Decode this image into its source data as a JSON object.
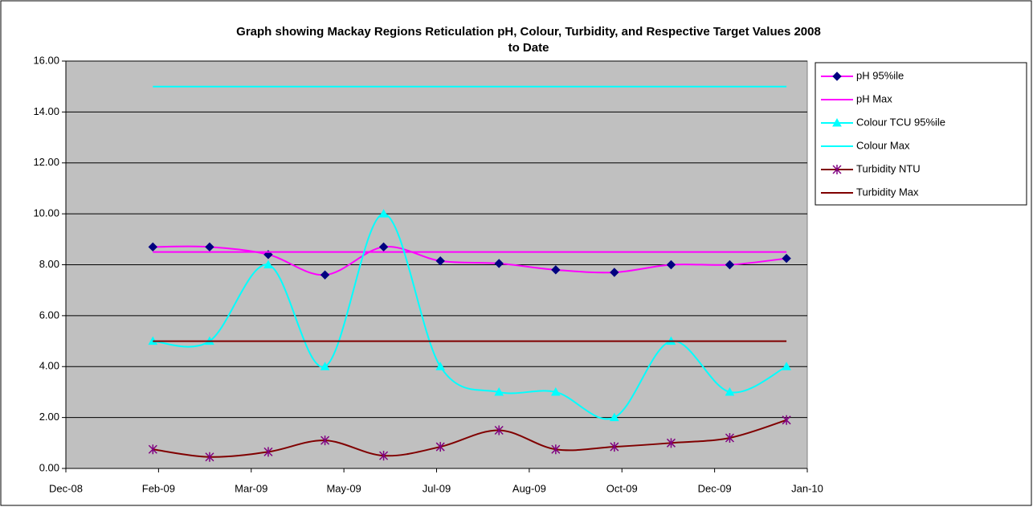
{
  "chart_data": {
    "type": "line",
    "title": "Graph showing Mackay Regions Reticulation pH, Colour, Turbidity, and Respective Target Values 2008 to Date",
    "x": [
      46,
      76,
      107,
      137,
      168,
      198,
      229,
      259,
      290,
      320,
      351,
      381
    ],
    "xlim": [
      0,
      392
    ],
    "xticks": [
      {
        "value": 0,
        "label": "Dec-08"
      },
      {
        "value": 49,
        "label": "Feb-09"
      },
      {
        "value": 98,
        "label": "Mar-09"
      },
      {
        "value": 147,
        "label": "May-09"
      },
      {
        "value": 196,
        "label": "Jul-09"
      },
      {
        "value": 245,
        "label": "Aug-09"
      },
      {
        "value": 294,
        "label": "Oct-09"
      },
      {
        "value": 343,
        "label": "Dec-09"
      },
      {
        "value": 392,
        "label": "Jan-10"
      }
    ],
    "ylim": [
      0,
      16
    ],
    "yticks": [
      {
        "value": 0,
        "label": "0.00"
      },
      {
        "value": 2,
        "label": "2.00"
      },
      {
        "value": 4,
        "label": "4.00"
      },
      {
        "value": 6,
        "label": "6.00"
      },
      {
        "value": 8,
        "label": "8.00"
      },
      {
        "value": 10,
        "label": "10.00"
      },
      {
        "value": 12,
        "label": "12.00"
      },
      {
        "value": 14,
        "label": "14.00"
      },
      {
        "value": 16,
        "label": "16.00"
      }
    ],
    "grid": true,
    "smooth": true,
    "legend": "right",
    "series": [
      {
        "name": "pH 95%ile",
        "color": "#ff00ff",
        "marker": "diamond",
        "marker_color": "#000080",
        "values": [
          8.7,
          8.7,
          8.4,
          7.6,
          8.7,
          8.15,
          8.05,
          7.8,
          7.7,
          8.0,
          8.0,
          8.25
        ]
      },
      {
        "name": "pH Max",
        "color": "#ff00ff",
        "values": [
          8.5,
          8.5,
          8.5,
          8.5,
          8.5,
          8.5,
          8.5,
          8.5,
          8.5,
          8.5,
          8.5,
          8.5
        ]
      },
      {
        "name": "Colour TCU 95%ile",
        "color": "#00ffff",
        "marker": "triangle",
        "marker_color": "#00ffff",
        "values": [
          5,
          5,
          8,
          4,
          10,
          4,
          3,
          3,
          2,
          5,
          3,
          4
        ]
      },
      {
        "name": "Colour Max",
        "color": "#00ffff",
        "values": [
          15,
          15,
          15,
          15,
          15,
          15,
          15,
          15,
          15,
          15,
          15,
          15
        ]
      },
      {
        "name": "Turbidity NTU",
        "color": "#800000",
        "marker": "star",
        "marker_color": "#800080",
        "values": [
          0.75,
          0.45,
          0.65,
          1.1,
          0.5,
          0.85,
          1.5,
          0.75,
          0.85,
          1.0,
          1.2,
          1.9
        ]
      },
      {
        "name": "Turbidity Max",
        "color": "#800000",
        "values": [
          5,
          5,
          5,
          5,
          5,
          5,
          5,
          5,
          5,
          5,
          5,
          5
        ]
      }
    ]
  }
}
